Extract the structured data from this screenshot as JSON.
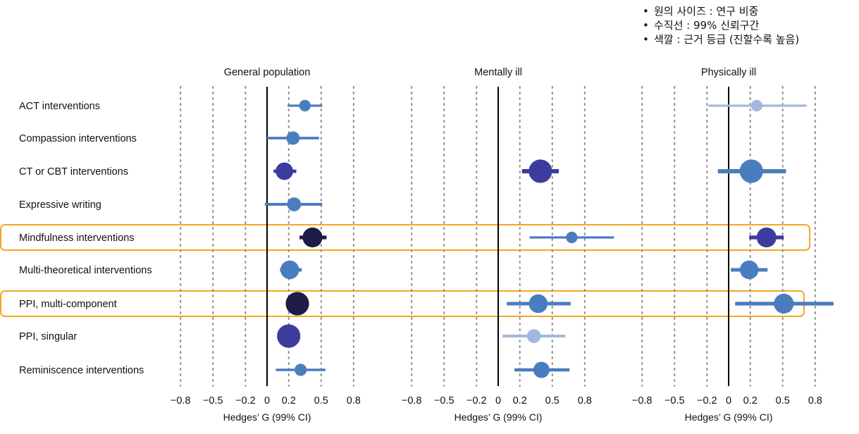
{
  "legend_notes": [
    "원의 사이즈 : 연구 비중",
    "수직선 : 99% 신뢰구간",
    "색깔 : 근거 등급 (진할수록 높음)"
  ],
  "grade_colors": {
    "1": "#a4b8dc",
    "2": "#4a7dbf",
    "3": "#3c3c9c",
    "4": "#1c1c46"
  },
  "highlight_color": "#f5a623",
  "highlighted_rows": [
    "Mindfulness interventions",
    "PPI, multi-component"
  ],
  "chart_data": {
    "type": "forest",
    "categories": [
      "ACT interventions",
      "Compassion interventions",
      "CT or CBT interventions",
      "Expressive writing",
      "Mindfulness interventions",
      "Multi-theoretical interventions",
      "PPI, multi-component",
      "PPI, singular",
      "Reminiscence interventions"
    ],
    "xlim": [
      -0.8,
      0.9
    ],
    "ticks": [
      -0.8,
      -0.5,
      -0.2,
      0,
      0.2,
      0.5,
      0.8
    ],
    "tick_labels": [
      "−0.8",
      "−0.5",
      "−0.2",
      "0",
      "0.2",
      "0.5",
      "0.8"
    ],
    "gridlines": [
      -0.8,
      -0.5,
      -0.2,
      0.2,
      0.5,
      0.8
    ],
    "zero_line": 0,
    "xlabel": "Hedges’ G (99% CI)",
    "panels": [
      {
        "title": "General population",
        "points": [
          {
            "category": "ACT interventions",
            "g": 0.35,
            "lo": 0.19,
            "hi": 0.51,
            "weight": 1,
            "grade": 2
          },
          {
            "category": "Compassion interventions",
            "g": 0.24,
            "lo": 0.0,
            "hi": 0.48,
            "weight": 1.3,
            "grade": 2
          },
          {
            "category": "CT or CBT interventions",
            "g": 0.16,
            "lo": 0.06,
            "hi": 0.27,
            "weight": 2,
            "grade": 3
          },
          {
            "category": "Expressive writing",
            "g": 0.25,
            "lo": -0.02,
            "hi": 0.51,
            "weight": 1.4,
            "grade": 2
          },
          {
            "category": "Mindfulness interventions",
            "g": 0.42,
            "lo": 0.3,
            "hi": 0.55,
            "weight": 2.4,
            "grade": 4
          },
          {
            "category": "Multi-theoretical interventions",
            "g": 0.21,
            "lo": 0.12,
            "hi": 0.32,
            "weight": 2.2,
            "grade": 2
          },
          {
            "category": "PPI, multi-component",
            "g": 0.28,
            "lo": 0.21,
            "hi": 0.36,
            "weight": 3,
            "grade": 4
          },
          {
            "category": "PPI, singular",
            "g": 0.2,
            "lo": 0.14,
            "hi": 0.28,
            "weight": 3,
            "grade": 3
          },
          {
            "category": "Reminiscence interventions",
            "g": 0.31,
            "lo": 0.08,
            "hi": 0.54,
            "weight": 1.1,
            "grade": 2
          }
        ]
      },
      {
        "title": "Mentally ill",
        "points": [
          {
            "category": "CT or CBT interventions",
            "g": 0.39,
            "lo": 0.22,
            "hi": 0.56,
            "weight": 3,
            "grade": 3
          },
          {
            "category": "Mindfulness interventions",
            "g": 0.68,
            "lo": 0.29,
            "hi": 1.07,
            "weight": 1,
            "grade": 2
          },
          {
            "category": "PPI, multi-component",
            "g": 0.37,
            "lo": 0.08,
            "hi": 0.67,
            "weight": 2.2,
            "grade": 2
          },
          {
            "category": "PPI, singular",
            "g": 0.33,
            "lo": 0.04,
            "hi": 0.62,
            "weight": 1.4,
            "grade": 1
          },
          {
            "category": "Reminiscence interventions",
            "g": 0.4,
            "lo": 0.15,
            "hi": 0.66,
            "weight": 1.8,
            "grade": 2
          }
        ]
      },
      {
        "title": "Physically ill",
        "points": [
          {
            "category": "ACT interventions",
            "g": 0.26,
            "lo": -0.19,
            "hi": 0.72,
            "weight": 1,
            "grade": 1
          },
          {
            "category": "CT or CBT interventions",
            "g": 0.21,
            "lo": -0.1,
            "hi": 0.53,
            "weight": 3,
            "grade": 2
          },
          {
            "category": "Mindfulness interventions",
            "g": 0.35,
            "lo": 0.19,
            "hi": 0.51,
            "weight": 2.4,
            "grade": 3
          },
          {
            "category": "Multi-theoretical interventions",
            "g": 0.19,
            "lo": 0.02,
            "hi": 0.36,
            "weight": 2.2,
            "grade": 2
          },
          {
            "category": "PPI, multi-component",
            "g": 0.51,
            "lo": 0.06,
            "hi": 0.97,
            "weight": 2.4,
            "grade": 2
          }
        ]
      }
    ]
  }
}
